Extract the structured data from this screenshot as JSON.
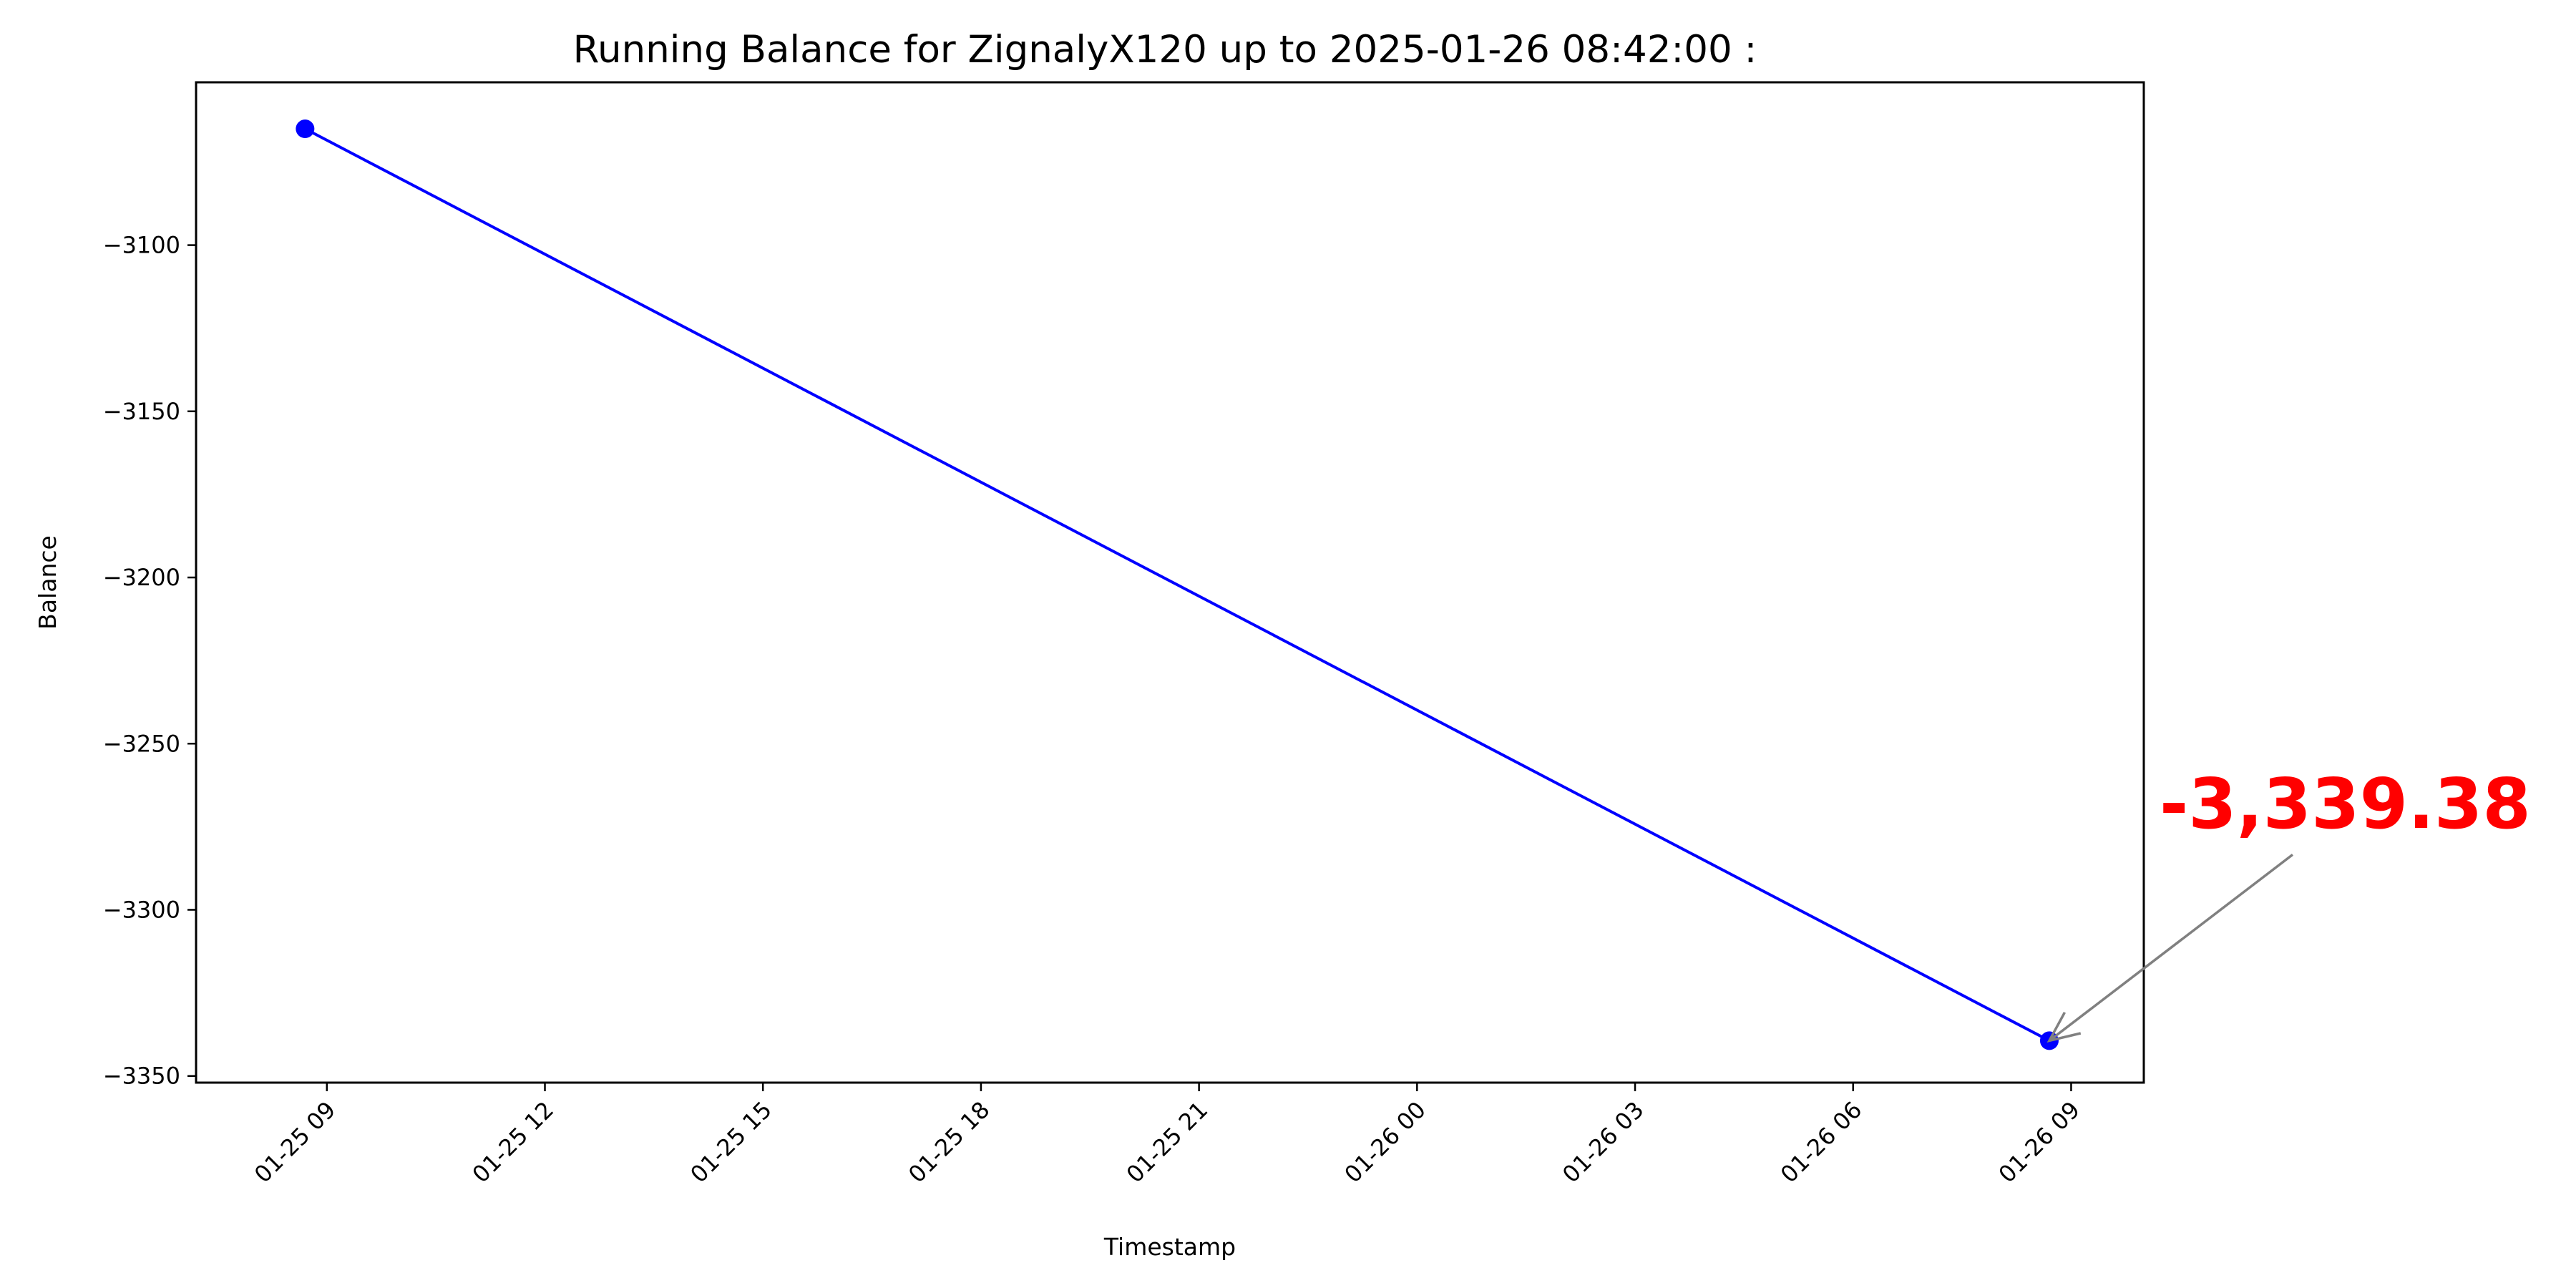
{
  "chart_data": {
    "type": "line",
    "title": "Running Balance for ZignalyX120 up to 2025-01-26 08:42:00 :",
    "xlabel": "Timestamp",
    "ylabel": "Balance",
    "x_ticks": [
      {
        "t": "2025-01-25T09:00",
        "label": "01-25 09"
      },
      {
        "t": "2025-01-25T12:00",
        "label": "01-25 12"
      },
      {
        "t": "2025-01-25T15:00",
        "label": "01-25 15"
      },
      {
        "t": "2025-01-25T18:00",
        "label": "01-25 18"
      },
      {
        "t": "2025-01-25T21:00",
        "label": "01-25 21"
      },
      {
        "t": "2025-01-26T00:00",
        "label": "01-26 00"
      },
      {
        "t": "2025-01-26T03:00",
        "label": "01-26 03"
      },
      {
        "t": "2025-01-26T06:00",
        "label": "01-26 06"
      },
      {
        "t": "2025-01-26T09:00",
        "label": "01-26 09"
      }
    ],
    "y_ticks": [
      -3100,
      -3150,
      -3200,
      -3250,
      -3300,
      -3350
    ],
    "xlim": [
      "2025-01-25T07:12",
      "2025-01-26T10:00"
    ],
    "ylim": [
      -3352,
      -3051
    ],
    "grid": false,
    "series": [
      {
        "color": "#0000ff",
        "points": [
          {
            "x": "2025-01-25T08:42",
            "y": -3065
          },
          {
            "x": "2025-01-26T08:42",
            "y": -3339.38
          }
        ]
      }
    ],
    "annotation": {
      "text": "-3,339.38",
      "color": "#ff0000",
      "arrow_color": "#808080",
      "target": {
        "x": "2025-01-26T08:42",
        "y": -3339.38
      }
    }
  }
}
